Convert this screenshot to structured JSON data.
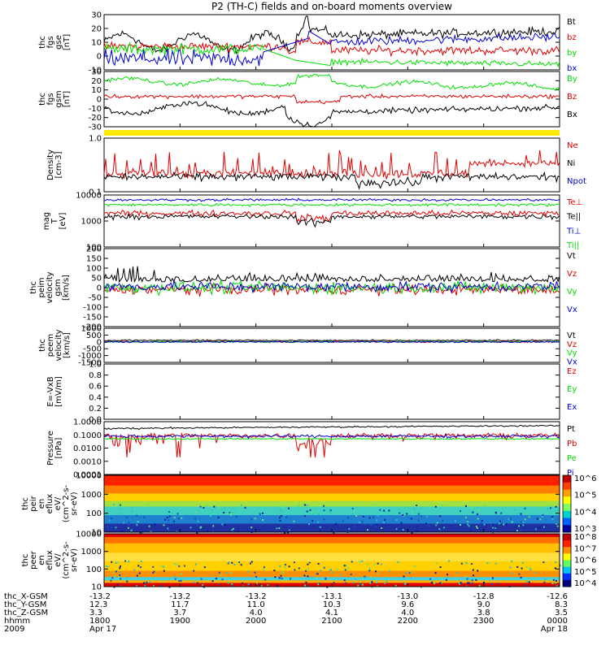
{
  "title": "P2 (TH-C) fields and on-board moments overview",
  "colors": {
    "black": "#000000",
    "red": "#e00000",
    "green": "#00e000",
    "blue": "#0000d0",
    "yellow": "#ffe800"
  },
  "chart_data": [
    {
      "type": "line",
      "panel": "fgs_gse",
      "ylabel": [
        "thc",
        "fgs",
        "gse",
        "[nT]"
      ],
      "ylim": [
        -10,
        30
      ],
      "yticks": [
        "30",
        "20",
        "10",
        "0",
        "-10"
      ],
      "series": [
        {
          "name": "Bt",
          "color": "#000000"
        },
        {
          "name": "bz",
          "color": "#e00000"
        },
        {
          "name": "by",
          "color": "#00e000"
        },
        {
          "name": "bx",
          "color": "#0000d0"
        }
      ]
    },
    {
      "type": "line",
      "panel": "fgs_gsm",
      "ylabel": [
        "thc",
        "fgs",
        "gsm",
        "[nT]"
      ],
      "ylim": [
        -30,
        30
      ],
      "yticks": [
        "30",
        "20",
        "10",
        "0",
        "-10",
        "-20",
        "-30"
      ],
      "series": [
        {
          "name": "By",
          "color": "#00e000"
        },
        {
          "name": "Bz",
          "color": "#e00000"
        },
        {
          "name": "Bx",
          "color": "#000000"
        }
      ]
    },
    {
      "type": "line",
      "panel": "density",
      "ylabel": [
        "Density",
        "[cm-3]"
      ],
      "ylim": [
        0.1,
        1.0
      ],
      "log": true,
      "yticks": [
        "1.0",
        "0.1"
      ],
      "series": [
        {
          "name": "Ne",
          "color": "#e00000"
        },
        {
          "name": "Ni",
          "color": "#000000"
        },
        {
          "name": "Npot",
          "color": "#0000d0"
        }
      ]
    },
    {
      "type": "line",
      "panel": "temperature",
      "ylabel": [
        "mag",
        "T",
        "[eV]"
      ],
      "ylim": [
        100,
        10000
      ],
      "log": true,
      "yticks": [
        "10000",
        "1000",
        "100"
      ],
      "series": [
        {
          "name": "Te⊥",
          "color": "#e00000"
        },
        {
          "name": "Te||",
          "color": "#000000"
        },
        {
          "name": "Ti⊥",
          "color": "#0000d0"
        },
        {
          "name": "Ti||",
          "color": "#00e000"
        }
      ]
    },
    {
      "type": "line",
      "panel": "peim_velocity",
      "ylabel": [
        "thc",
        "peim",
        "velocity",
        "gsm",
        "[km/s]"
      ],
      "ylim": [
        -200,
        200
      ],
      "yticks": [
        "200",
        "150",
        "100",
        "50",
        "0",
        "-50",
        "-100",
        "-150",
        "-200"
      ],
      "series": [
        {
          "name": "Vt",
          "color": "#000000"
        },
        {
          "name": "Vz",
          "color": "#e00000"
        },
        {
          "name": "Vy",
          "color": "#00e000"
        },
        {
          "name": "Vx",
          "color": "#0000d0"
        }
      ]
    },
    {
      "type": "line",
      "panel": "peem_velocity",
      "ylabel": [
        "thc",
        "peem",
        "velocity",
        "[km/s]"
      ],
      "ylim": [
        -1500,
        1000
      ],
      "yticks": [
        "1000",
        "500",
        "0",
        "-500",
        "-1000",
        "-1500"
      ],
      "series": [
        {
          "name": "Vt",
          "color": "#000000"
        },
        {
          "name": "Vz",
          "color": "#e00000"
        },
        {
          "name": "Vy",
          "color": "#00e000"
        },
        {
          "name": "Vx",
          "color": "#0000d0"
        }
      ]
    },
    {
      "type": "line",
      "panel": "efield",
      "ylabel": [
        "E=-VxB",
        "[mV/m]"
      ],
      "ylim": [
        0,
        1.0
      ],
      "yticks": [
        "1.0",
        "0.8",
        "0.6",
        "0.4",
        "0.2",
        "0.0"
      ],
      "series": [
        {
          "name": "Ez",
          "color": "#e00000"
        },
        {
          "name": "Ey",
          "color": "#00e000"
        },
        {
          "name": "Ex",
          "color": "#0000d0"
        }
      ]
    },
    {
      "type": "line",
      "panel": "pressure",
      "ylabel": [
        "Pressure",
        "[nPa]"
      ],
      "ylim": [
        0.0001,
        1.0
      ],
      "log": true,
      "yticks": [
        "1.0000",
        "0.1000",
        "0.0100",
        "0.0010",
        "0.0001"
      ],
      "series": [
        {
          "name": "Pt",
          "color": "#000000"
        },
        {
          "name": "Pb",
          "color": "#e00000"
        },
        {
          "name": "Pe",
          "color": "#00e000"
        },
        {
          "name": "Pi",
          "color": "#0000d0"
        }
      ]
    },
    {
      "type": "heatmap",
      "panel": "peir_eflux",
      "ylabel": [
        "thc",
        "peir",
        "en",
        "eflux",
        "eV/",
        "(cm^2-s-",
        "sr-eV)"
      ],
      "ylim": [
        10,
        10000
      ],
      "log": true,
      "yticks": [
        "10000",
        "1000",
        "100",
        "10"
      ],
      "colorbar_ticks": [
        "10^6",
        "10^5",
        "10^4",
        "10^3"
      ]
    },
    {
      "type": "heatmap",
      "panel": "peer_eflux",
      "ylabel": [
        "thc",
        "peer",
        "en",
        "eflux",
        "eV/",
        "(cm^2-s-",
        "sr-eV)"
      ],
      "ylim": [
        10,
        10000
      ],
      "log": true,
      "yticks": [
        "10000",
        "1000",
        "100",
        "10"
      ],
      "colorbar_ticks": [
        "10^8",
        "10^7",
        "10^6",
        "10^5",
        "10^4"
      ]
    }
  ],
  "xaxis": {
    "rows": [
      {
        "label": "thc_X-GSM",
        "values": [
          "-13.2",
          "-13.2",
          "-13.2",
          "-13.1",
          "-13.0",
          "-12.8",
          "-12.6"
        ]
      },
      {
        "label": "thc_Y-GSM",
        "values": [
          "12.3",
          "11.7",
          "11.0",
          "10.3",
          "9.6",
          "9.0",
          "8.3"
        ]
      },
      {
        "label": "thc_Z-GSM",
        "values": [
          "3.3",
          "3.7",
          "4.0",
          "4.1",
          "4.0",
          "3.8",
          "3.5"
        ]
      },
      {
        "label": "hhmm",
        "values": [
          "1800",
          "1900",
          "2000",
          "2100",
          "2200",
          "2300",
          "0000"
        ]
      },
      {
        "label": "2009",
        "values": [
          "Apr 17",
          "",
          "",
          "",
          "",
          "",
          "Apr 18"
        ]
      }
    ]
  }
}
